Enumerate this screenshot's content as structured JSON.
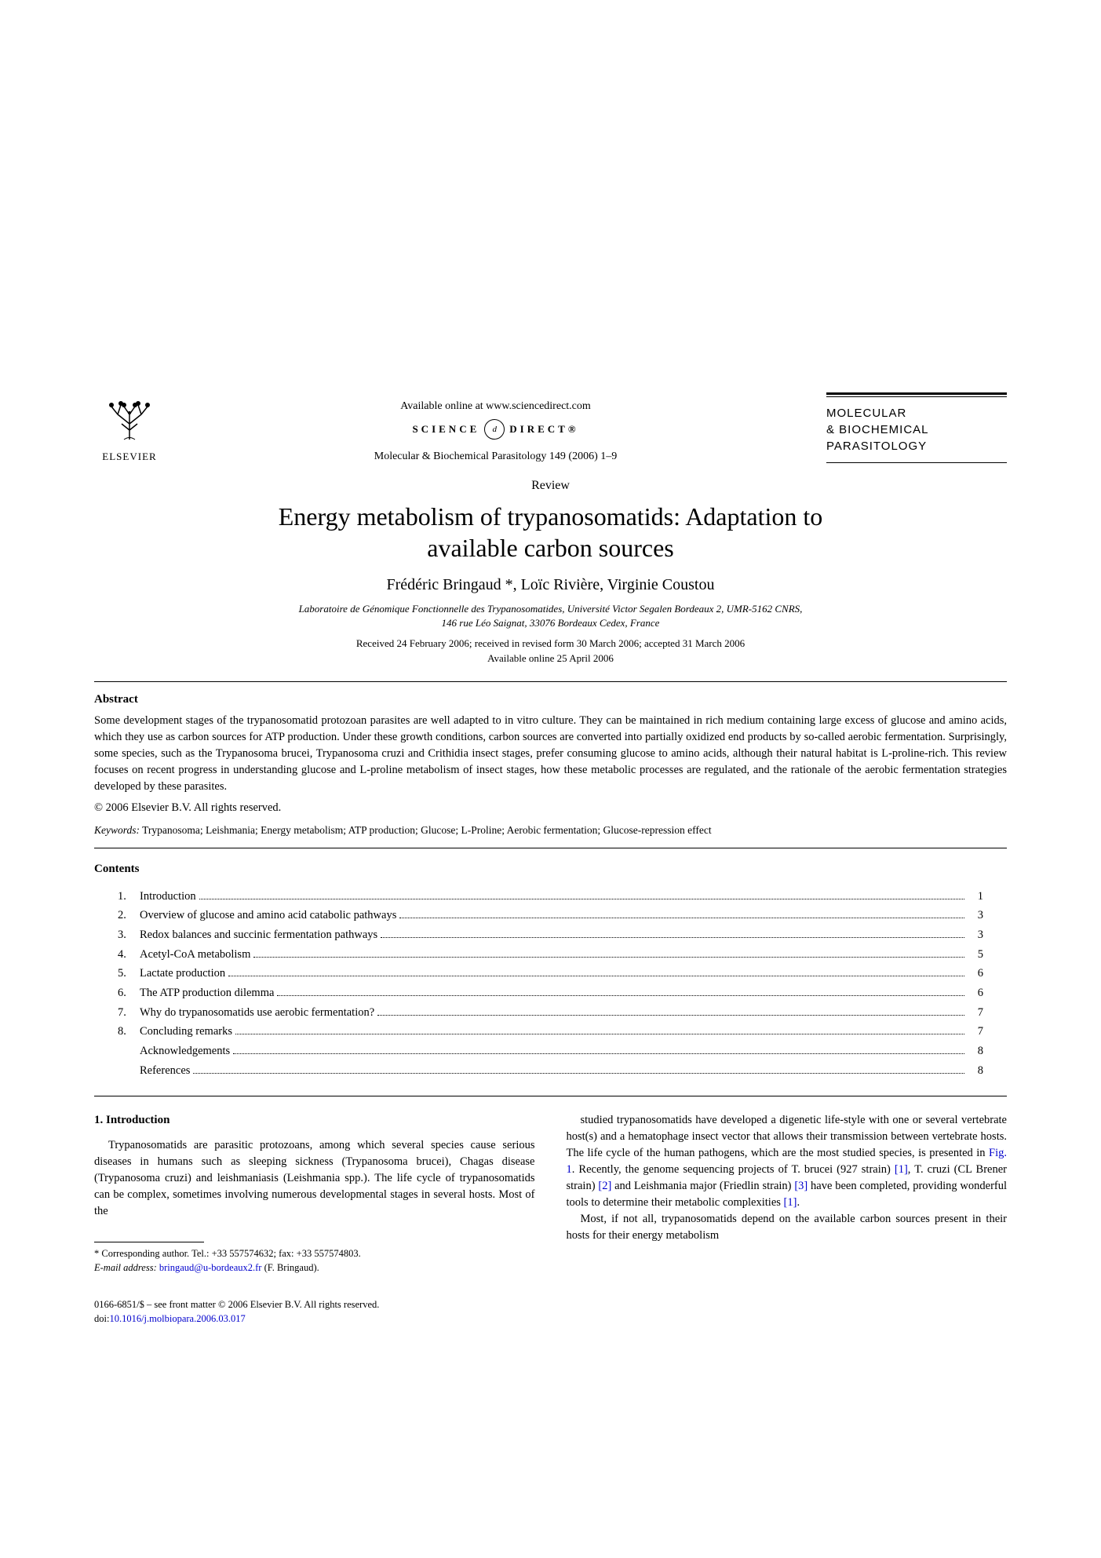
{
  "header": {
    "publisher": "ELSEVIER",
    "available_online": "Available online at www.sciencedirect.com",
    "sd_left": "SCIENCE",
    "sd_circle": "d",
    "sd_right": "DIRECT®",
    "citation": "Molecular & Biochemical Parasitology 149 (2006) 1–9",
    "journal_line1": "MOLECULAR",
    "journal_line2": "& BIOCHEMICAL",
    "journal_line3": "PARASITOLOGY"
  },
  "article": {
    "type": "Review",
    "title_line1": "Energy metabolism of trypanosomatids: Adaptation to",
    "title_line2": "available carbon sources",
    "authors": "Frédéric Bringaud *, Loïc Rivière, Virginie Coustou",
    "affiliation_line1": "Laboratoire de Génomique Fonctionnelle des Trypanosomatides, Université Victor Segalen Bordeaux 2, UMR-5162 CNRS,",
    "affiliation_line2": "146 rue Léo Saignat, 33076 Bordeaux Cedex, France",
    "received": "Received 24 February 2006; received in revised form 30 March 2006; accepted 31 March 2006",
    "available": "Available online 25 April 2006"
  },
  "abstract": {
    "label": "Abstract",
    "text": "Some development stages of the trypanosomatid protozoan parasites are well adapted to in vitro culture. They can be maintained in rich medium containing large excess of glucose and amino acids, which they use as carbon sources for ATP production. Under these growth conditions, carbon sources are converted into partially oxidized end products by so-called aerobic fermentation. Surprisingly, some species, such as the Trypanosoma brucei, Trypanosoma cruzi and Crithidia insect stages, prefer consuming glucose to amino acids, although their natural habitat is L-proline-rich. This review focuses on recent progress in understanding glucose and L-proline metabolism of insect stages, how these metabolic processes are regulated, and the rationale of the aerobic fermentation strategies developed by these parasites.",
    "copyright": "© 2006 Elsevier B.V. All rights reserved.",
    "keywords_label": "Keywords:",
    "keywords": " Trypanosoma; Leishmania; Energy metabolism; ATP production; Glucose; L-Proline; Aerobic fermentation; Glucose-repression effect"
  },
  "contents": {
    "label": "Contents",
    "items": [
      {
        "num": "1.",
        "title": "Introduction",
        "page": "1"
      },
      {
        "num": "2.",
        "title": "Overview of glucose and amino acid catabolic pathways",
        "page": "3"
      },
      {
        "num": "3.",
        "title": "Redox balances and succinic fermentation pathways",
        "page": "3"
      },
      {
        "num": "4.",
        "title": "Acetyl-CoA metabolism",
        "page": "5"
      },
      {
        "num": "5.",
        "title": "Lactate production",
        "page": "6"
      },
      {
        "num": "6.",
        "title": "The ATP production dilemma",
        "page": "6"
      },
      {
        "num": "7.",
        "title": "Why do trypanosomatids use aerobic fermentation?",
        "page": "7"
      },
      {
        "num": "8.",
        "title": "Concluding remarks",
        "page": "7"
      },
      {
        "num": "",
        "title": "Acknowledgements",
        "page": "8"
      },
      {
        "num": "",
        "title": "References",
        "page": "8"
      }
    ]
  },
  "body": {
    "section1_heading": "1. Introduction",
    "col1_p1": "Trypanosomatids are parasitic protozoans, among which several species cause serious diseases in humans such as sleeping sickness (Trypanosoma brucei), Chagas disease (Trypanosoma cruzi) and leishmaniasis (Leishmania spp.). The life cycle of trypanosomatids can be complex, sometimes involving numerous developmental stages in several hosts. Most of the",
    "col2_p1_a": "studied trypanosomatids have developed a digenetic life-style with one or several vertebrate host(s) and a hematophage insect vector that allows their transmission between vertebrate hosts. The life cycle of the human pathogens, which are the most studied species, is presented in ",
    "col2_fig1": "Fig. 1",
    "col2_p1_b": ". Recently, the genome sequencing projects of T. brucei (927 strain) ",
    "col2_ref1": "[1]",
    "col2_p1_c": ", T. cruzi (CL Brener strain) ",
    "col2_ref2": "[2]",
    "col2_p1_d": " and Leishmania major (Friedlin strain) ",
    "col2_ref3": "[3]",
    "col2_p1_e": " have been completed, providing wonderful tools to determine their metabolic complexities ",
    "col2_ref1b": "[1]",
    "col2_p1_f": ".",
    "col2_p2": "Most, if not all, trypanosomatids depend on the available carbon sources present in their hosts for their energy metabolism"
  },
  "footnote": {
    "corresponding": "* Corresponding author. Tel.: +33 557574632; fax: +33 557574803.",
    "email_label": "E-mail address: ",
    "email": "bringaud@u-bordeaux2.fr",
    "email_suffix": " (F. Bringaud)."
  },
  "footer": {
    "front_matter": "0166-6851/$ – see front matter © 2006 Elsevier B.V. All rights reserved.",
    "doi_label": "doi:",
    "doi": "10.1016/j.molbiopara.2006.03.017"
  }
}
